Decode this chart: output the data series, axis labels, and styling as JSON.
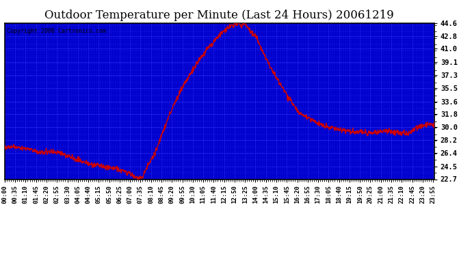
{
  "title": "Outdoor Temperature per Minute (Last 24 Hours) 20061219",
  "copyright": "Copyright 2006 Cartronics.com",
  "title_fontsize": 12,
  "plot_bg_color": "#0000cc",
  "figure_bg_color": "#ffffff",
  "line_color": "#cc0000",
  "line_width": 1.0,
  "yticks": [
    22.7,
    24.5,
    26.4,
    28.2,
    30.0,
    31.8,
    33.6,
    35.5,
    37.3,
    39.1,
    41.0,
    42.8,
    44.6
  ],
  "ymin": 22.7,
  "ymax": 44.6,
  "grid_color": "#3333ff",
  "grid_linestyle": "--",
  "grid_linewidth": 0.5
}
